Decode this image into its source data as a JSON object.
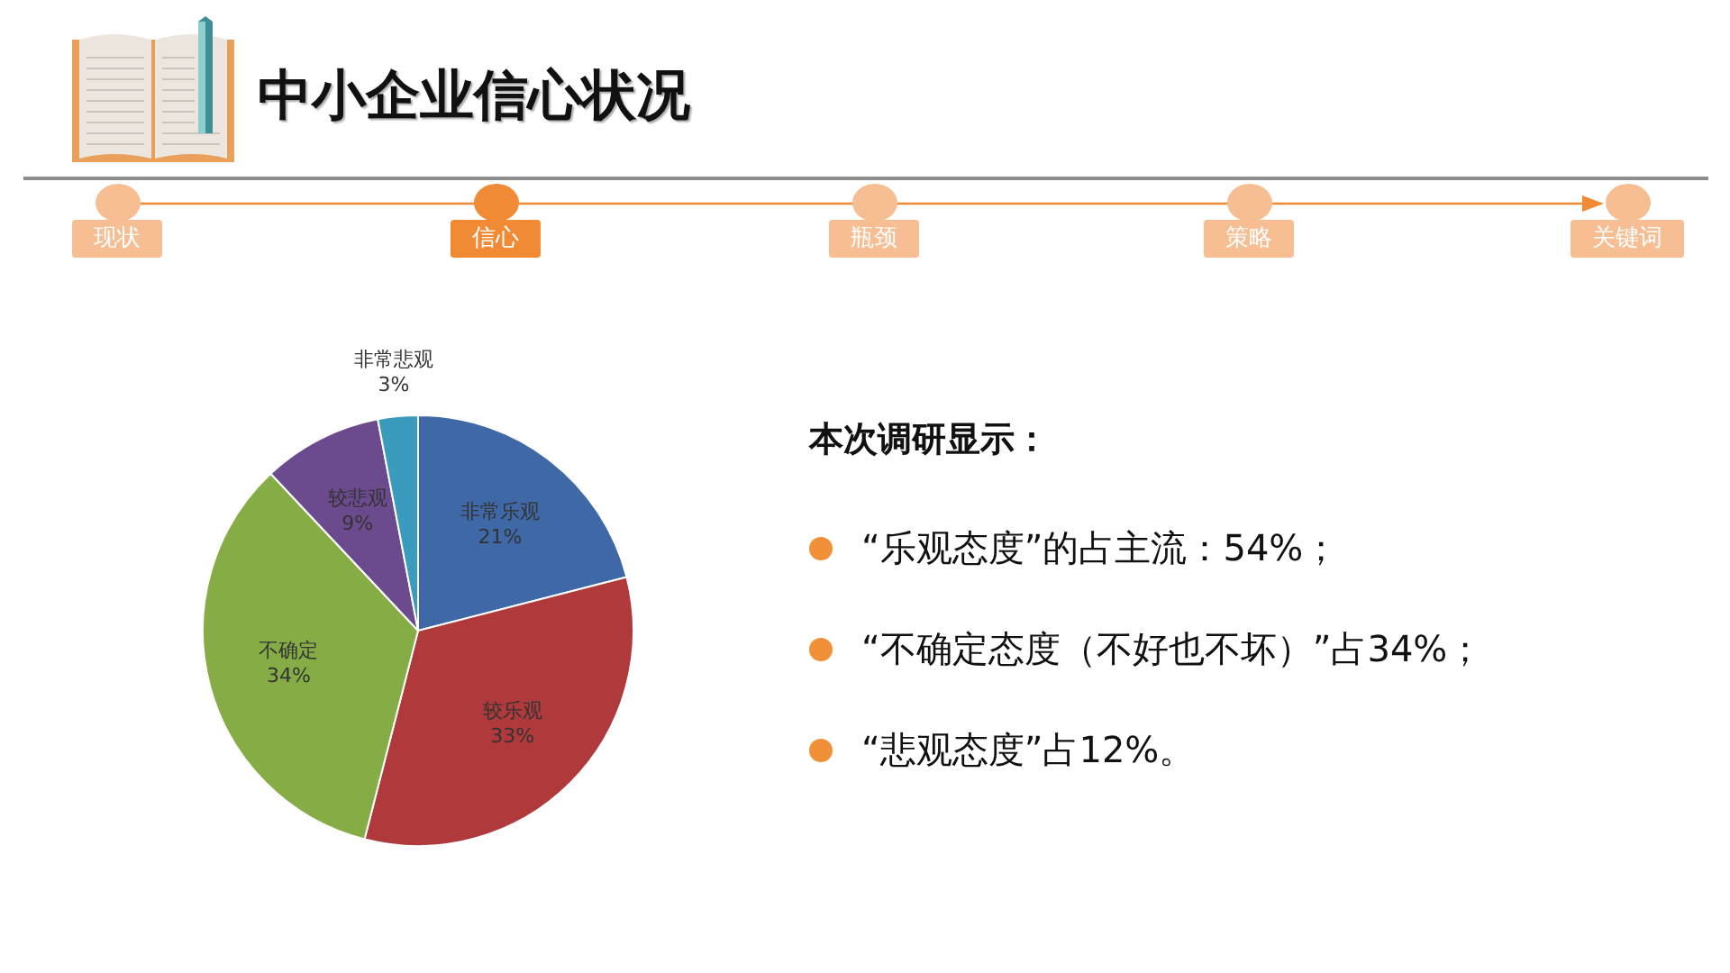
{
  "chart_data": {
    "type": "pie",
    "title": "中小企业信心状况",
    "categories": [
      "非常乐观",
      "较乐观",
      "不确定",
      "较悲观",
      "非常悲观"
    ],
    "values": [
      21,
      33,
      34,
      9,
      3
    ],
    "colors": [
      "#3f68a7",
      "#b0393c",
      "#86ad45",
      "#6b4b8e",
      "#3b9bbd"
    ],
    "value_labels": [
      "21%",
      "33%",
      "34%",
      "9%",
      "3%"
    ],
    "annotations": [
      "现状",
      "信心",
      "瓶颈",
      "策略",
      "关键词",
      "本次调研显示：",
      "“乐观态度”的占主流：54%；",
      "“不确定态度（不好也不坏）”占34%；",
      "“悲观态度”占12%。"
    ]
  }
}
